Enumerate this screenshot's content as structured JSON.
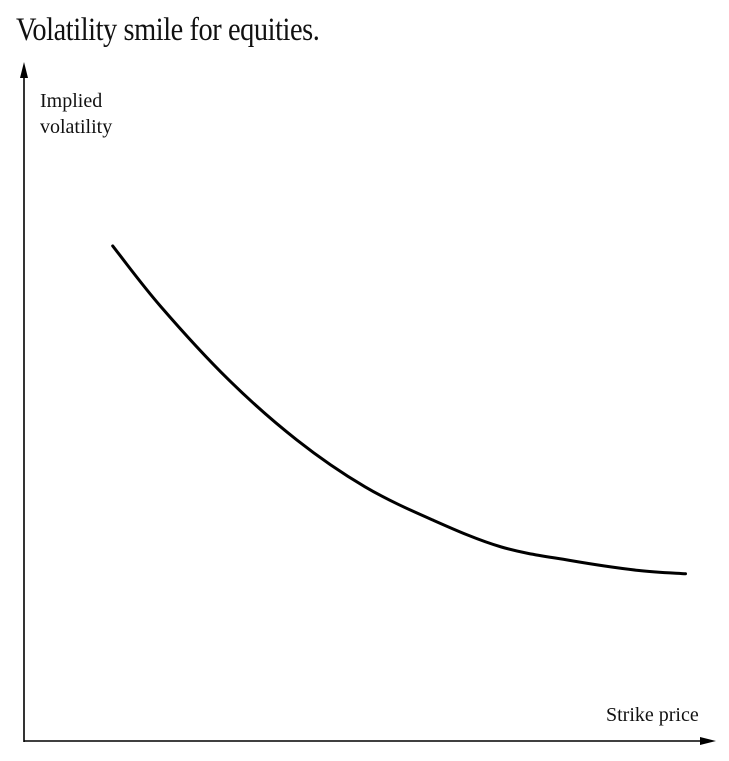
{
  "chart_data": {
    "type": "line",
    "title": "Volatility smile for equities.",
    "ylabel_lines": [
      "Implied",
      "volatility"
    ],
    "xlabel": "Strike price",
    "grid": false,
    "axis_ticks": "none",
    "ylim": [
      0,
      1
    ],
    "xlim": [
      0,
      1
    ],
    "series": [
      {
        "x": [
          0.13,
          0.2,
          0.3,
          0.4,
          0.5,
          0.6,
          0.7,
          0.8,
          0.9,
          0.97
        ],
        "y": [
          0.74,
          0.65,
          0.54,
          0.45,
          0.38,
          0.33,
          0.29,
          0.27,
          0.255,
          0.25
        ]
      }
    ],
    "colors": {
      "axis": "#000000",
      "curve": "#000000"
    }
  }
}
